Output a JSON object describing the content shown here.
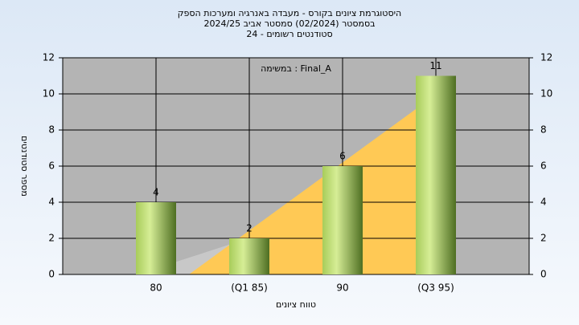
{
  "chart_data": {
    "type": "bar",
    "title": [
      "היסטוגרמת ציונים בקורס - מעבדה באנרגיה ומערכות הספק",
      "בסמסטר  (02/2024)  סמסטר אביב 2024/25",
      "סטודנטים רשומים - 24"
    ],
    "annotation": "במשימה : Final_A",
    "x_label": "טווח ציונים",
    "y_label": "מספר סטודנטים",
    "categories": [
      "80",
      "(Q1 85)",
      "90",
      "(Q3 95)"
    ],
    "values": [
      4,
      2,
      6,
      11
    ],
    "color": "#9fc840",
    "ylim": [
      0,
      12
    ],
    "yticks": [
      0,
      2,
      4,
      6,
      8,
      10,
      12
    ],
    "y2lim": [
      0,
      12
    ],
    "y2ticks": [
      0,
      2,
      4,
      6,
      8,
      10,
      12
    ],
    "grid": true
  }
}
